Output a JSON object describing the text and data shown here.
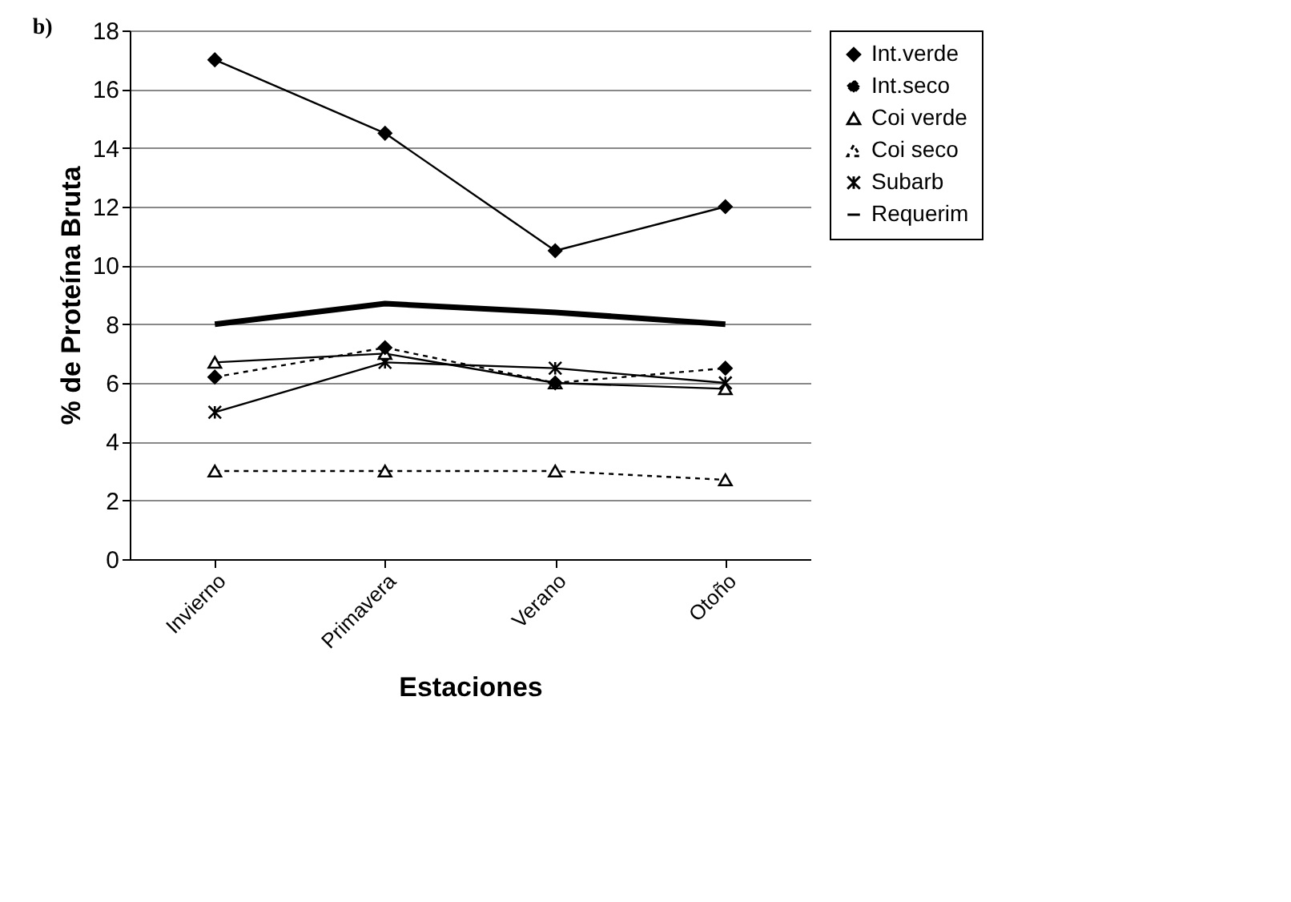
{
  "chart_data": {
    "type": "line",
    "title": "b)",
    "xlabel": "Estaciones",
    "ylabel": "% de Proteína Bruta",
    "categories": [
      "Invierno",
      "Primavera",
      "Verano",
      "Otoño"
    ],
    "series": [
      {
        "name": "Int.verde",
        "color": "#000000",
        "marker": "diamond",
        "line_style": "solid",
        "values": [
          17,
          14.5,
          10.5,
          12
        ]
      },
      {
        "name": "Int.seco",
        "color": "#000000",
        "marker": "diamond",
        "line_style": "dotted",
        "values": [
          6.2,
          7.2,
          6.0,
          6.5
        ]
      },
      {
        "name": "Coi verde",
        "color": "#000000",
        "marker": "triangle",
        "line_style": "solid",
        "values": [
          6.7,
          7.0,
          6.0,
          5.8
        ]
      },
      {
        "name": "Coi seco",
        "color": "#000000",
        "marker": "triangle",
        "line_style": "dotted",
        "values": [
          3,
          3,
          3,
          2.7
        ]
      },
      {
        "name": "Subarb",
        "color": "#000000",
        "marker": "cross",
        "line_style": "solid",
        "values": [
          5.0,
          6.7,
          6.5,
          6.0
        ]
      },
      {
        "name": "Requerim",
        "color": "#000000",
        "marker": "none",
        "line_style": "solid",
        "values": [
          8.0,
          8.7,
          8.4,
          8.0
        ]
      }
    ],
    "ylim": [
      0,
      18
    ],
    "yticks": [
      0,
      2,
      4,
      6,
      8,
      10,
      12,
      14,
      16,
      18
    ],
    "grid": "y",
    "legend": "right"
  }
}
